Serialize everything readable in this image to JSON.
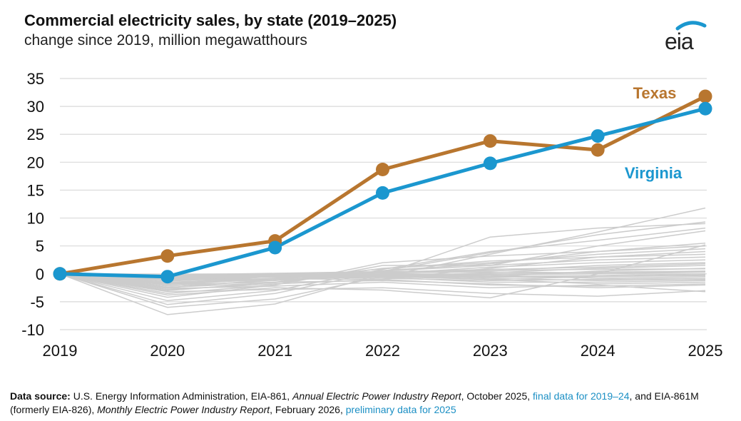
{
  "header": {
    "title": "Commercial electricity sales, by state (2019–2025)",
    "subtitle": "change since 2019, million megawatthours",
    "logo_text": "eia"
  },
  "colors": {
    "texas": "#b8762f",
    "virginia": "#1b97cf",
    "other_states": "#cccccc",
    "grid": "#d9d9d9"
  },
  "chart_data": {
    "type": "line",
    "title": "Commercial electricity sales, by state (2019–2025)",
    "subtitle": "change since 2019, million megawatthours",
    "x": [
      "2019",
      "2020",
      "2021",
      "2022",
      "2023",
      "2024",
      "2025"
    ],
    "ylim": [
      -10,
      35
    ],
    "yticks": [
      "35",
      "30",
      "25",
      "20",
      "15",
      "10",
      "5",
      "0",
      "-5",
      "-10"
    ],
    "grid": true,
    "series": [
      {
        "name": "Texas",
        "values": [
          0,
          3.2,
          5.9,
          18.7,
          23.8,
          22.2,
          31.8
        ],
        "highlight": true
      },
      {
        "name": "Virginia",
        "values": [
          0,
          -0.5,
          4.7,
          14.5,
          19.8,
          24.7,
          29.6
        ],
        "highlight": true
      }
    ],
    "other_states": [
      [
        0,
        -7.3,
        -5.4,
        0.0,
        6.6,
        8.2,
        9.0
      ],
      [
        0,
        -6.0,
        -4.5,
        -0.5,
        3.5,
        7.5,
        11.8
      ],
      [
        0,
        -5.5,
        -3.5,
        0.5,
        3.8,
        7.0,
        9.3
      ],
      [
        0,
        -4.8,
        -3.0,
        0.8,
        4.0,
        6.0,
        8.2
      ],
      [
        0,
        -4.2,
        -2.0,
        1.5,
        1.5,
        5.0,
        7.7
      ],
      [
        0,
        -3.8,
        -2.5,
        -2.9,
        -4.3,
        0.0,
        5.2
      ],
      [
        0,
        -3.5,
        -2.0,
        2.0,
        3.2,
        4.0,
        5.0
      ],
      [
        0,
        -3.0,
        -1.5,
        1.0,
        2.0,
        3.5,
        4.5
      ],
      [
        0,
        -2.8,
        -1.8,
        -1.0,
        1.0,
        3.0,
        4.0
      ],
      [
        0,
        -2.5,
        -1.0,
        0.5,
        1.5,
        2.5,
        3.0
      ],
      [
        0,
        -2.2,
        -1.2,
        0.0,
        1.2,
        2.0,
        2.5
      ],
      [
        0,
        -2.0,
        -0.8,
        0.3,
        0.5,
        1.5,
        2.0
      ],
      [
        0,
        -1.8,
        -1.0,
        -0.5,
        0.2,
        1.0,
        1.5
      ],
      [
        0,
        -1.6,
        -0.5,
        0.2,
        -0.5,
        0.5,
        1.0
      ],
      [
        0,
        -1.5,
        -0.8,
        -0.3,
        0.0,
        0.3,
        0.5
      ],
      [
        0,
        -1.3,
        -0.5,
        0.0,
        -0.2,
        0.0,
        0.3
      ],
      [
        0,
        -1.2,
        -0.3,
        -0.2,
        -0.5,
        -0.3,
        0.0
      ],
      [
        0,
        -1.0,
        -0.5,
        -0.5,
        -1.0,
        -0.5,
        -0.3
      ],
      [
        0,
        -0.9,
        -0.2,
        -0.1,
        -0.3,
        -0.8,
        -0.5
      ],
      [
        0,
        -0.8,
        -0.6,
        -0.8,
        -1.2,
        -1.0,
        -0.8
      ],
      [
        0,
        -0.7,
        -0.4,
        -0.3,
        -0.8,
        -1.2,
        -1.0
      ],
      [
        0,
        -0.6,
        -0.3,
        -0.6,
        -1.5,
        -1.5,
        -1.2
      ],
      [
        0,
        -0.5,
        -0.2,
        -0.4,
        -1.0,
        -1.8,
        -1.5
      ],
      [
        0,
        -0.4,
        -0.1,
        -0.2,
        -0.6,
        -0.5,
        -0.2
      ],
      [
        0,
        -0.3,
        0.0,
        0.2,
        0.3,
        0.2,
        0.4
      ],
      [
        0,
        -0.2,
        0.1,
        0.4,
        0.6,
        0.8,
        0.9
      ],
      [
        0,
        -3.2,
        -2.8,
        -2.5,
        -3.5,
        -4.0,
        -3.0
      ],
      [
        0,
        -2.6,
        -2.2,
        -1.5,
        -2.5,
        -2.0,
        -3.2
      ],
      [
        0,
        -1.9,
        -1.5,
        -1.2,
        -1.8,
        -2.5,
        -2.0
      ],
      [
        0,
        -1.1,
        -0.9,
        -1.0,
        -2.0,
        -2.2,
        -1.8
      ],
      [
        0,
        -2.4,
        -1.6,
        0.6,
        1.8,
        4.0,
        5.5
      ],
      [
        0,
        -1.7,
        -0.9,
        0.9,
        2.3,
        3.0,
        3.5
      ],
      [
        0,
        -0.95,
        -0.4,
        0.3,
        0.8,
        1.2,
        1.8
      ]
    ],
    "labels": {
      "texas": "Texas",
      "virginia": "Virginia"
    }
  },
  "source": {
    "label": "Data source:",
    "text1": " U.S. Energy Information Administration, EIA-861, ",
    "italic1": "Annual Electric Power Industry Report",
    "text2": ", October 2025, ",
    "link1": "final data for 2019–24",
    "text3": ", and EIA-861M (formerly EIA-826), ",
    "italic2": "Monthly Electric Power Industry Report",
    "text4": ", February 2026, ",
    "link2": "preliminary data for 2025"
  }
}
